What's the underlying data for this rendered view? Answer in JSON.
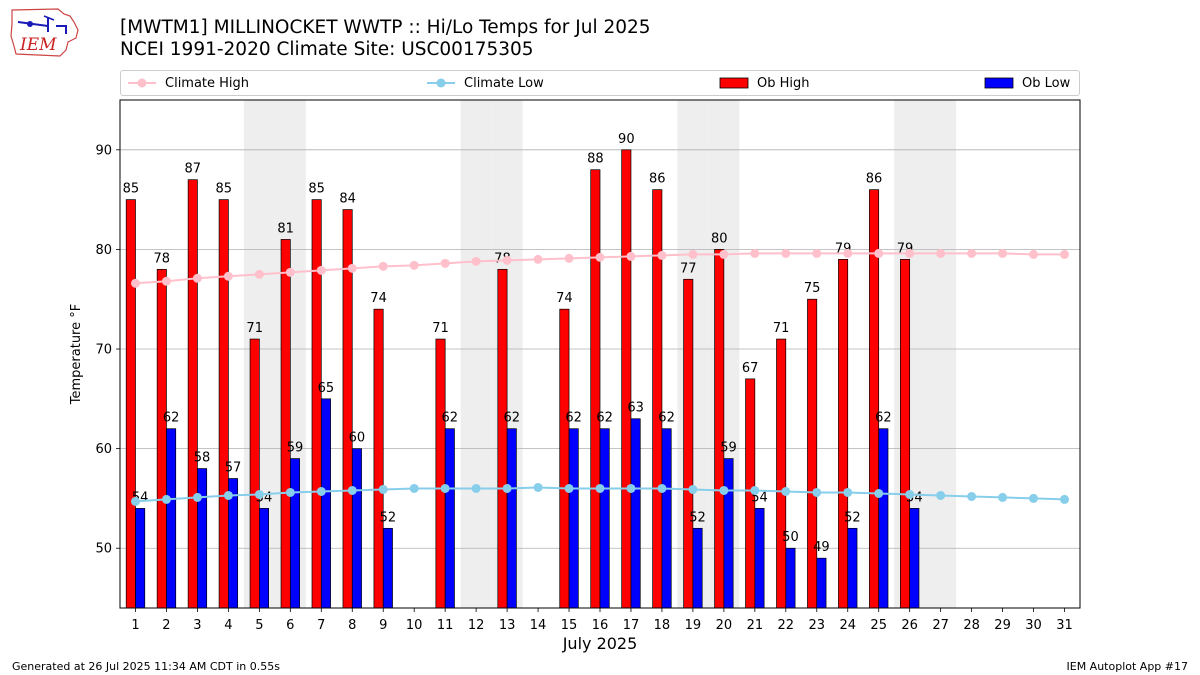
{
  "header": {
    "logo_text": "IEM",
    "title_line1": "[MWTM1] MILLINOCKET WWTP :: Hi/Lo Temps for Jul 2025",
    "title_line2": "NCEI 1991-2020 Climate Site: USC00175305"
  },
  "legend": {
    "items": [
      {
        "label": "Climate High",
        "marker": "line-dot",
        "color": "#ffc0cb"
      },
      {
        "label": "Climate Low",
        "marker": "line-dot",
        "color": "#87ceeb"
      },
      {
        "label": "Ob High",
        "marker": "box",
        "color": "#ff0000"
      },
      {
        "label": "Ob Low",
        "marker": "box",
        "color": "#0000ff"
      }
    ]
  },
  "footer": {
    "left": "Generated at 26 Jul 2025 11:34 AM CDT in 0.55s",
    "right": "IEM Autoplot App #17"
  },
  "colors": {
    "ob_high": "#ff0000",
    "ob_low": "#0000ff",
    "climate_high": "#ffc0cb",
    "climate_low": "#87ceeb",
    "weekend_shade": "#eeeeee",
    "grid": "#b0b0b0"
  },
  "chart_data": {
    "type": "bar",
    "xlabel": "July 2025",
    "ylabel": "Temperature °F",
    "ylim": [
      44,
      95
    ],
    "yticks": [
      50,
      60,
      70,
      80,
      90
    ],
    "xlim": [
      0.5,
      31.5
    ],
    "grid": "horizontal",
    "legend_placement": "top",
    "days": [
      1,
      2,
      3,
      4,
      5,
      6,
      7,
      8,
      9,
      10,
      11,
      12,
      13,
      14,
      15,
      16,
      17,
      18,
      19,
      20,
      21,
      22,
      23,
      24,
      25,
      26,
      27,
      28,
      29,
      30,
      31
    ],
    "weekend_days": [
      5,
      6,
      12,
      13,
      19,
      20,
      26,
      27
    ],
    "series": [
      {
        "name": "Ob High",
        "type": "bar",
        "values": [
          85,
          78,
          87,
          85,
          71,
          81,
          85,
          84,
          74,
          null,
          71,
          null,
          78,
          null,
          74,
          88,
          90,
          86,
          77,
          80,
          67,
          71,
          75,
          79,
          86,
          79,
          null,
          null,
          null,
          null,
          null
        ]
      },
      {
        "name": "Ob Low",
        "type": "bar",
        "values": [
          54,
          62,
          58,
          57,
          54,
          59,
          65,
          60,
          52,
          null,
          62,
          null,
          62,
          null,
          62,
          62,
          63,
          62,
          52,
          59,
          54,
          50,
          49,
          52,
          62,
          54,
          null,
          null,
          null,
          null,
          null
        ]
      },
      {
        "name": "Climate High",
        "type": "line",
        "values": [
          76.6,
          76.8,
          77.1,
          77.3,
          77.5,
          77.7,
          77.9,
          78.1,
          78.3,
          78.4,
          78.6,
          78.8,
          78.9,
          79.0,
          79.1,
          79.2,
          79.3,
          79.4,
          79.5,
          79.5,
          79.6,
          79.6,
          79.6,
          79.6,
          79.6,
          79.6,
          79.6,
          79.6,
          79.6,
          79.5,
          79.5
        ]
      },
      {
        "name": "Climate Low",
        "type": "line",
        "values": [
          54.7,
          54.9,
          55.1,
          55.3,
          55.4,
          55.6,
          55.7,
          55.8,
          55.9,
          56.0,
          56.0,
          56.0,
          56.0,
          56.1,
          56.0,
          56.0,
          56.0,
          56.0,
          55.9,
          55.8,
          55.8,
          55.7,
          55.6,
          55.6,
          55.5,
          55.4,
          55.3,
          55.2,
          55.1,
          55.0,
          54.9
        ]
      }
    ]
  }
}
